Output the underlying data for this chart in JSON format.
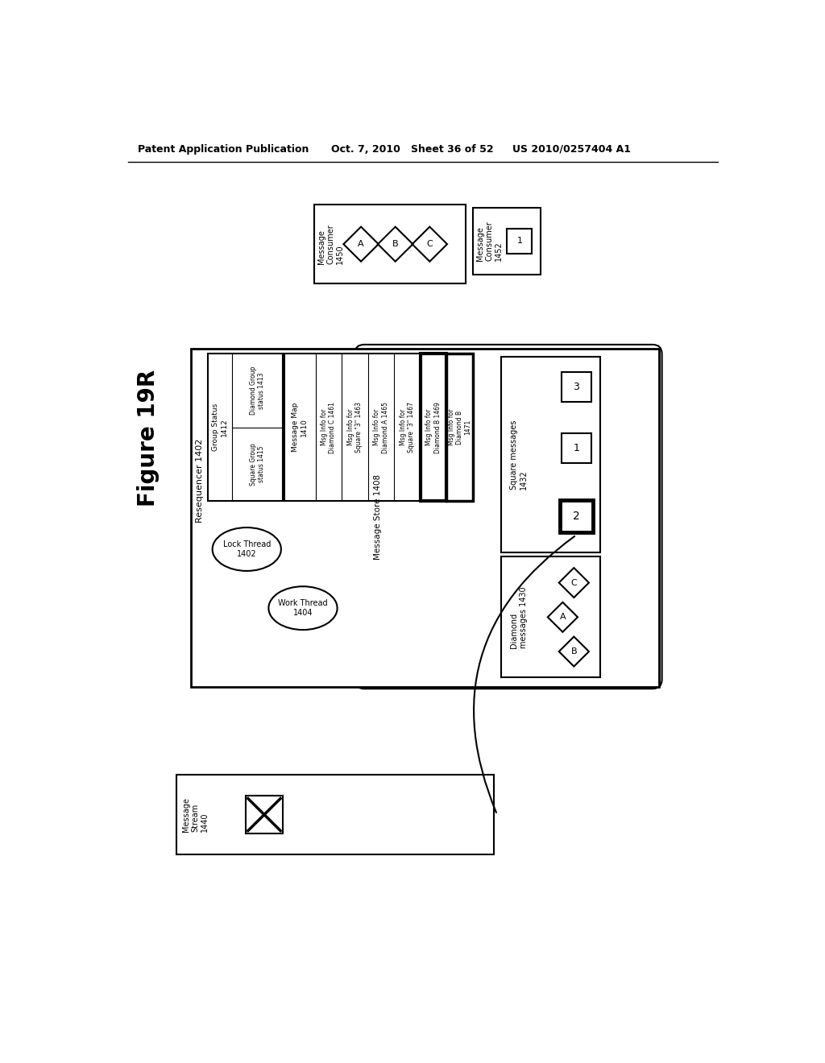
{
  "header_left": "Patent Application Publication",
  "header_middle": "Oct. 7, 2010   Sheet 36 of 52",
  "header_right": "US 2010/0257404 A1",
  "figure_label": "Figure 19R",
  "bg_color": "#ffffff",
  "text_color": "#000000"
}
